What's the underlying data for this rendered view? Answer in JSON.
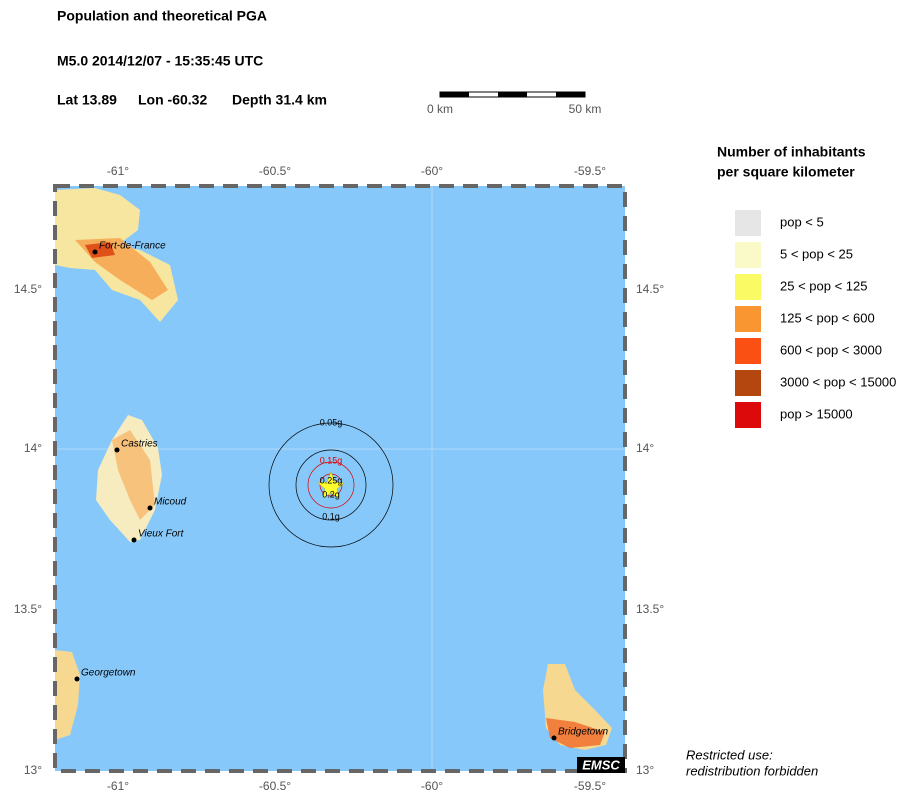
{
  "header": {
    "title": "Population and theoretical PGA",
    "event": "M5.0  2014/12/07 - 15:35:45 UTC",
    "lat": "Lat 13.89",
    "lon": "Lon -60.32",
    "depth": "Depth  31.4 km"
  },
  "scale_bar": {
    "start": "0 km",
    "end": "50 km"
  },
  "map": {
    "lon_ticks": [
      "-61°",
      "-60.5°",
      "-60°",
      "-59.5°"
    ],
    "lat_ticks": [
      "14.5°",
      "14°",
      "13.5°",
      "13°"
    ],
    "cities": [
      "Fort-de-France",
      "Castries",
      "Micoud",
      "Vieux Fort",
      "Georgetown",
      "Bridgetown"
    ],
    "pga_contours": [
      "0.05g",
      "0.15g",
      "0.25g",
      "0.2g",
      "0.1g"
    ],
    "logo": "EMSC"
  },
  "legend": {
    "title": [
      "Number of inhabitants",
      "per square kilometer"
    ],
    "items": [
      {
        "label": "pop < 5",
        "color": "#e6e6e6"
      },
      {
        "label": "5 < pop < 25",
        "color": "#fafac8"
      },
      {
        "label": "25 < pop < 125",
        "color": "#fafa64"
      },
      {
        "label": "125 < pop < 600",
        "color": "#fa9632"
      },
      {
        "label": "600 < pop < 3000",
        "color": "#fa5014"
      },
      {
        "label": "3000 < pop < 15000",
        "color": "#b4460f"
      },
      {
        "label": "pop > 15000",
        "color": "#dc0a0a"
      }
    ]
  },
  "footer": [
    "Restricted use:",
    "redistribution forbidden"
  ]
}
